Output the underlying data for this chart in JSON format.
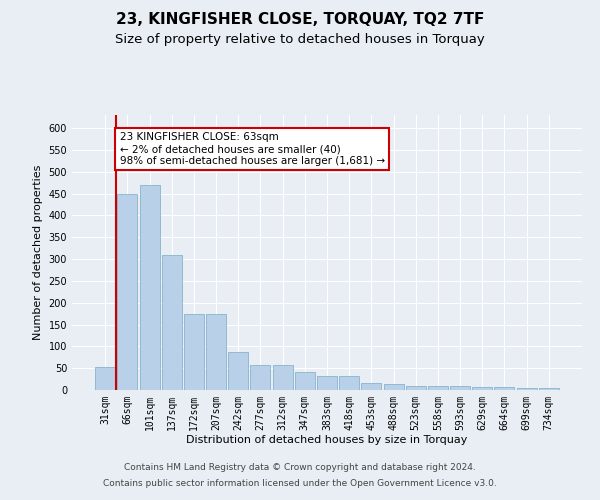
{
  "title": "23, KINGFISHER CLOSE, TORQUAY, TQ2 7TF",
  "subtitle": "Size of property relative to detached houses in Torquay",
  "xlabel": "Distribution of detached houses by size in Torquay",
  "ylabel": "Number of detached properties",
  "categories": [
    "31sqm",
    "66sqm",
    "101sqm",
    "137sqm",
    "172sqm",
    "207sqm",
    "242sqm",
    "277sqm",
    "312sqm",
    "347sqm",
    "383sqm",
    "418sqm",
    "453sqm",
    "488sqm",
    "523sqm",
    "558sqm",
    "593sqm",
    "629sqm",
    "664sqm",
    "699sqm",
    "734sqm"
  ],
  "values": [
    53,
    450,
    470,
    310,
    175,
    174,
    88,
    58,
    57,
    42,
    31,
    31,
    15,
    14,
    9,
    9,
    9,
    8,
    7,
    4,
    4
  ],
  "bar_color": "#b8d0e8",
  "bar_edge_color": "#7aaac8",
  "annotation_text": "23 KINGFISHER CLOSE: 63sqm\n← 2% of detached houses are smaller (40)\n98% of semi-detached houses are larger (1,681) →",
  "annotation_box_color": "#ffffff",
  "annotation_box_edge": "#cc0000",
  "vline_color": "#cc0000",
  "ylim": [
    0,
    630
  ],
  "yticks": [
    0,
    50,
    100,
    150,
    200,
    250,
    300,
    350,
    400,
    450,
    500,
    550,
    600
  ],
  "footer1": "Contains HM Land Registry data © Crown copyright and database right 2024.",
  "footer2": "Contains public sector information licensed under the Open Government Licence v3.0.",
  "bg_color": "#e8eef4",
  "plot_bg_color": "#e8eef4",
  "grid_color": "#ffffff",
  "title_fontsize": 11,
  "subtitle_fontsize": 9.5,
  "axis_label_fontsize": 8,
  "tick_fontsize": 7,
  "annotation_fontsize": 7.5,
  "footer_fontsize": 6.5
}
